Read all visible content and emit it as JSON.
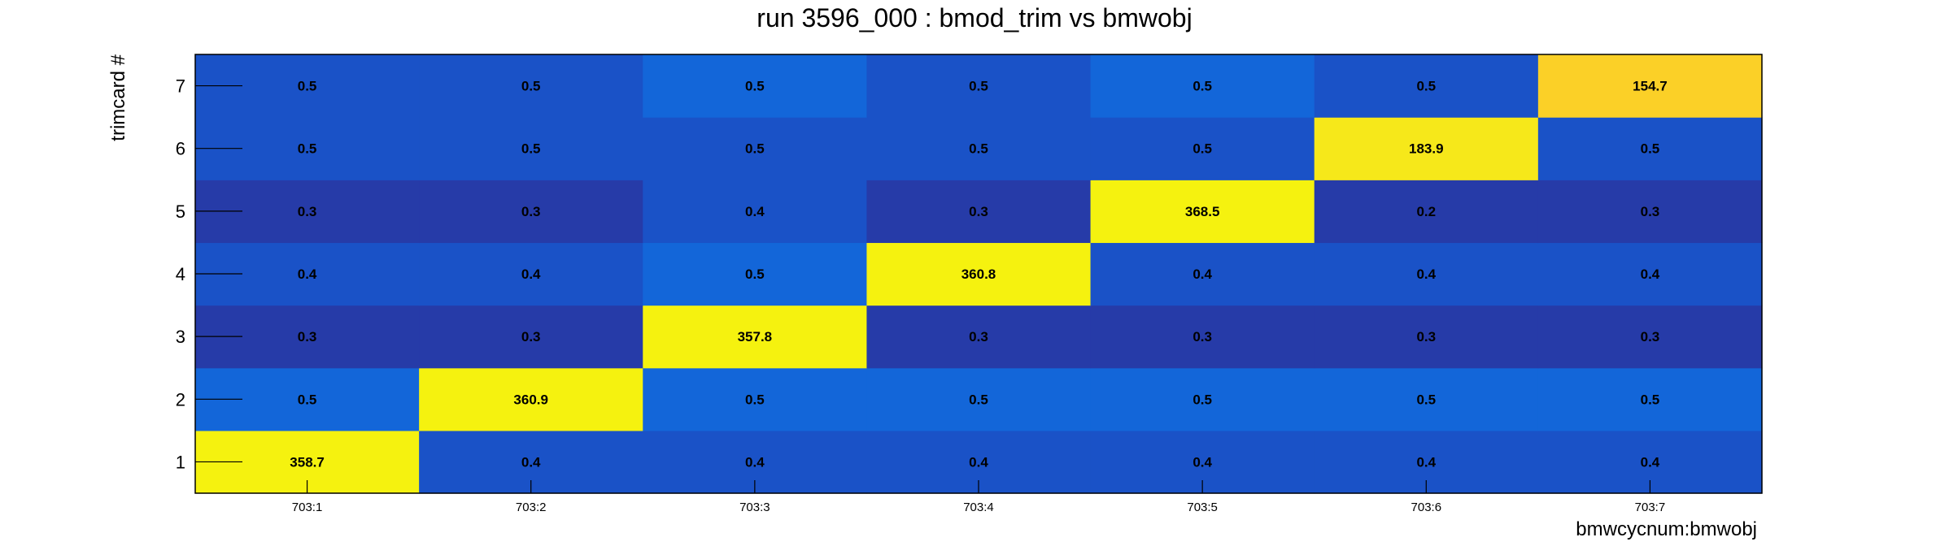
{
  "chart_data": {
    "type": "heatmap",
    "title": "run 3596_000 : bmod_trim vs bmwobj",
    "xlabel": "bmwcycnum:bmwobj",
    "ylabel": "trimcard #",
    "x_categories": [
      "703:1",
      "703:2",
      "703:3",
      "703:4",
      "703:5",
      "703:6",
      "703:7"
    ],
    "y_categories": [
      "1",
      "2",
      "3",
      "4",
      "5",
      "6",
      "7"
    ],
    "values": [
      [
        "358.7",
        "0.4",
        "0.4",
        "0.4",
        "0.4",
        "0.4",
        "0.4"
      ],
      [
        "0.5",
        "360.9",
        "0.5",
        "0.5",
        "0.5",
        "0.5",
        "0.5"
      ],
      [
        "0.3",
        "0.3",
        "357.8",
        "0.3",
        "0.3",
        "0.3",
        "0.3"
      ],
      [
        "0.4",
        "0.4",
        "0.5",
        "360.8",
        "0.4",
        "0.4",
        "0.4"
      ],
      [
        "0.3",
        "0.3",
        "0.4",
        "0.3",
        "368.5",
        "0.2",
        "0.3"
      ],
      [
        "0.5",
        "0.5",
        "0.5",
        "0.5",
        "0.5",
        "183.9",
        "0.5"
      ],
      [
        "0.5",
        "0.5",
        "0.5",
        "0.5",
        "0.5",
        "0.5",
        "154.7"
      ]
    ],
    "cell_colors": [
      [
        "#f5f20f",
        "#1a52c7",
        "#1a52c7",
        "#1a52c7",
        "#1a52c7",
        "#1a52c7",
        "#1a52c7"
      ],
      [
        "#1366d9",
        "#f5f20f",
        "#1366d9",
        "#1366d9",
        "#1366d9",
        "#1366d9",
        "#1366d9"
      ],
      [
        "#263ba8",
        "#263ba8",
        "#f5f20f",
        "#263ba8",
        "#263ba8",
        "#263ba8",
        "#263ba8"
      ],
      [
        "#1a52c7",
        "#1a52c7",
        "#1366d9",
        "#f5f20f",
        "#1a52c7",
        "#1a52c7",
        "#1a52c7"
      ],
      [
        "#263ba8",
        "#263ba8",
        "#1a52c7",
        "#263ba8",
        "#f5f20f",
        "#263ba8",
        "#263ba8"
      ],
      [
        "#1a52c7",
        "#1a52c7",
        "#1a52c7",
        "#1a52c7",
        "#1a52c7",
        "#f6e81a",
        "#1a52c7"
      ],
      [
        "#1a52c7",
        "#1a52c7",
        "#1366d9",
        "#1a52c7",
        "#1366d9",
        "#1a52c7",
        "#fbd027"
      ]
    ],
    "grid": false,
    "legend": "none"
  }
}
